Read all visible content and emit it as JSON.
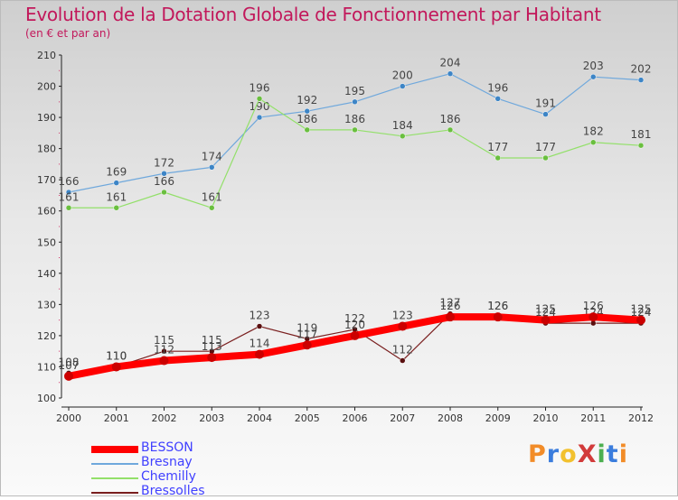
{
  "title": "Evolution de la Dotation Globale de Fonctionnement par Habitant",
  "subtitle": "(en € et par an)",
  "logo_text": "ProXiti",
  "logo_colors": [
    "#f28c28",
    "#3b7ddd",
    "#f2c12e",
    "#d23b3b",
    "#4caf50",
    "#3b7ddd",
    "#f28c28"
  ],
  "chart_data": {
    "type": "line",
    "x": [
      "2000",
      "2001",
      "2002",
      "2003",
      "2004",
      "2005",
      "2006",
      "2007",
      "2008",
      "2009",
      "2010",
      "2011",
      "2012"
    ],
    "ylim": [
      100,
      210
    ],
    "yticks": [
      "100",
      "110",
      "120",
      "130",
      "140",
      "150",
      "160",
      "170",
      "180",
      "190",
      "200",
      "210"
    ],
    "grid": false,
    "legend_position": "bottom-left",
    "series": [
      {
        "name": "Bresnay",
        "color": "#6fa8dc",
        "marker": "#3d85c6",
        "width": 1.2,
        "values": [
          166,
          169,
          172,
          174,
          190,
          192,
          195,
          200,
          204,
          196,
          191,
          203,
          202
        ]
      },
      {
        "name": "Chemilly",
        "color": "#93e06a",
        "marker": "#6abf3f",
        "width": 1.2,
        "values": [
          161,
          161,
          166,
          161,
          196,
          186,
          186,
          184,
          186,
          177,
          177,
          182,
          181
        ]
      },
      {
        "name": "Bressolles",
        "color": "#7a1f1f",
        "marker": "#5a0f0f",
        "width": 1.2,
        "values": [
          108,
          110,
          115,
          115,
          123,
          119,
          122,
          112,
          127,
          126,
          124,
          124,
          124
        ]
      },
      {
        "name": "BESSON",
        "color": "#ff0000",
        "marker": "#cc0000",
        "width": 8,
        "values": [
          107,
          110,
          112,
          113,
          114,
          117,
          120,
          123,
          126,
          126,
          125,
          126,
          125
        ]
      }
    ]
  }
}
